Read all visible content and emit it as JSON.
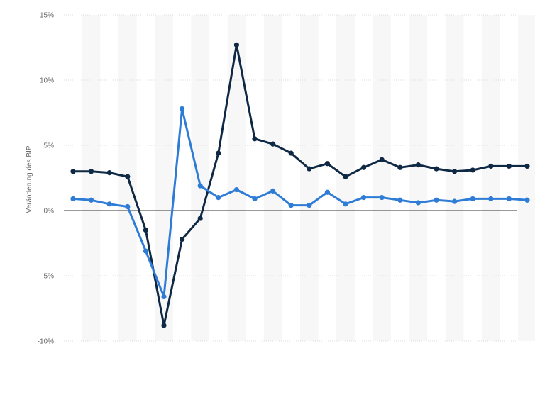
{
  "chart_data": {
    "type": "line",
    "title": "",
    "xlabel": "",
    "ylabel": "Veränderung des BIP",
    "ylim": [
      -10,
      15
    ],
    "yticks": [
      15,
      10,
      5,
      0,
      -5,
      -10
    ],
    "ytick_labels": [
      "15%",
      "10%",
      "5%",
      "0%",
      "-5%",
      "-10%"
    ],
    "grid": true,
    "legend": "none",
    "x": [
      1,
      2,
      3,
      4,
      5,
      6,
      7,
      8,
      9,
      10,
      11,
      12,
      13,
      14,
      15,
      16,
      17,
      18,
      19,
      20,
      21,
      22,
      23,
      24,
      25,
      26
    ],
    "series": [
      {
        "color": "#0f2944",
        "values": [
          3.0,
          3.0,
          2.9,
          2.6,
          -1.5,
          -8.8,
          -2.2,
          -0.6,
          4.4,
          12.7,
          5.5,
          5.1,
          4.4,
          3.2,
          3.6,
          2.6,
          3.3,
          3.9,
          3.3,
          3.5,
          3.2,
          3.0,
          3.1,
          3.4,
          3.4,
          3.4
        ]
      },
      {
        "color": "#2f7cd6",
        "values": [
          0.9,
          0.8,
          0.5,
          0.3,
          -3.1,
          -6.6,
          7.8,
          1.9,
          1.0,
          1.6,
          0.9,
          1.5,
          0.4,
          0.4,
          1.4,
          0.5,
          1.0,
          1.0,
          0.8,
          0.6,
          0.8,
          0.7,
          0.9,
          0.9,
          0.9,
          0.8
        ]
      }
    ]
  }
}
